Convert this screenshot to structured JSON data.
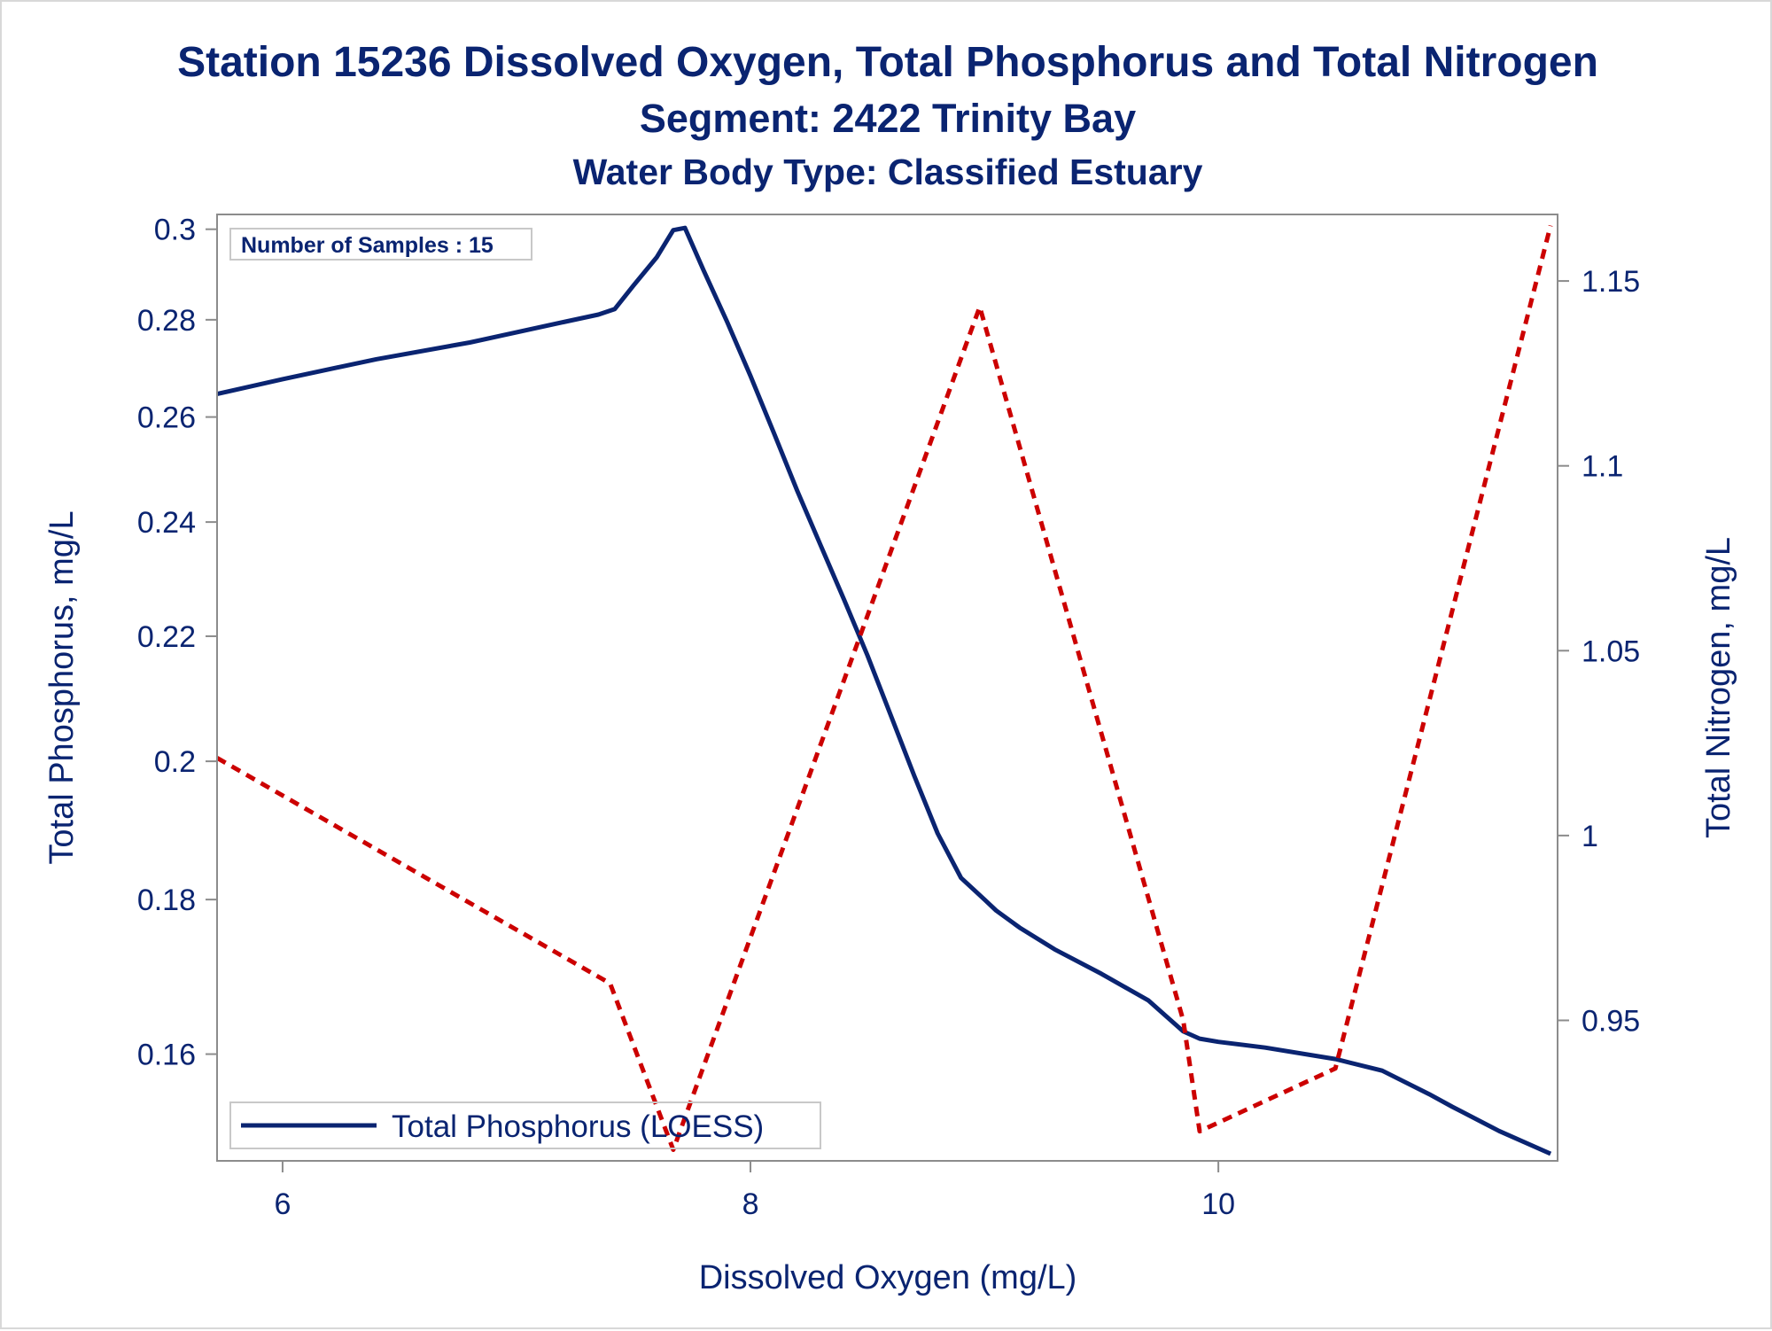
{
  "chart_data": {
    "type": "line",
    "title": "Station 15236  Dissolved Oxygen, Total Phosphorus and Total Nitrogen",
    "subtitle": "Segment: 2422  Trinity Bay",
    "subtitle2": "Water Body Type: Classified Estuary",
    "xlabel": "Dissolved Oxygen (mg/L)",
    "ylabel": "Total Phosphorus, mg/L",
    "y2label": "Total Nitrogen, mg/L",
    "xlim": [
      5.72,
      11.45
    ],
    "ylim": [
      0.1475,
      0.3034
    ],
    "y2lim": [
      0.912,
      1.168
    ],
    "y_scale": "log",
    "y2_scale": "linear",
    "x_ticks": [
      6,
      8,
      10
    ],
    "x_tick_labels": [
      "6",
      "8",
      "10"
    ],
    "y_ticks": [
      0.16,
      0.18,
      0.2,
      0.22,
      0.24,
      0.26,
      0.28,
      0.3
    ],
    "y_tick_labels": [
      "0.16",
      "0.18",
      "0.2",
      "0.22",
      "0.24",
      "0.26",
      "0.28",
      "0.3"
    ],
    "y2_ticks": [
      0.95,
      1.0,
      1.05,
      1.1,
      1.15
    ],
    "y2_tick_labels": [
      "0.95",
      "1",
      "1.05",
      "1.1",
      "1.15"
    ],
    "grid": false,
    "annotation": "Number of Samples : 15",
    "legend_position": "bottom-left inside",
    "series": [
      {
        "name": "Total Phosphorus (LOESS)",
        "axis": "left",
        "style": "solid",
        "color": "#0a2471",
        "x": [
          5.72,
          6.0,
          6.4,
          6.8,
          7.2,
          7.35,
          7.42,
          7.5,
          7.6,
          7.67,
          7.72,
          7.8,
          7.9,
          8.0,
          8.1,
          8.2,
          8.3,
          8.4,
          8.5,
          8.6,
          8.7,
          8.8,
          8.9,
          9.0,
          9.05,
          9.15,
          9.3,
          9.5,
          9.7,
          9.85,
          9.92,
          10.0,
          10.2,
          10.5,
          10.7,
          10.9,
          11.0,
          11.2,
          11.42
        ],
        "y": [
          0.2646,
          0.2676,
          0.2717,
          0.2752,
          0.2795,
          0.2811,
          0.2823,
          0.2874,
          0.2937,
          0.2998,
          0.3003,
          0.2907,
          0.2796,
          0.2683,
          0.2569,
          0.2458,
          0.2358,
          0.2262,
          0.2168,
          0.2071,
          0.1978,
          0.1893,
          0.183,
          0.18,
          0.1785,
          0.1762,
          0.1733,
          0.1701,
          0.1667,
          0.1628,
          0.1619,
          0.1615,
          0.1608,
          0.1594,
          0.158,
          0.1552,
          0.1537,
          0.1509,
          0.1483
        ]
      },
      {
        "name": "",
        "axis": "right",
        "style": "dashed",
        "color": "#cc0000",
        "x": [
          5.72,
          7.4,
          7.67,
          8.98,
          9.85,
          9.92,
          10.5,
          11.42
        ],
        "y": [
          1.021,
          0.96,
          0.915,
          1.143,
          0.95,
          0.92,
          0.937,
          1.165
        ]
      }
    ]
  },
  "colors": {
    "text": "#0a2471",
    "axis": "#8c8c8c",
    "phosphorus_line": "#0a2471",
    "nitrogen_line": "#cc0000"
  }
}
